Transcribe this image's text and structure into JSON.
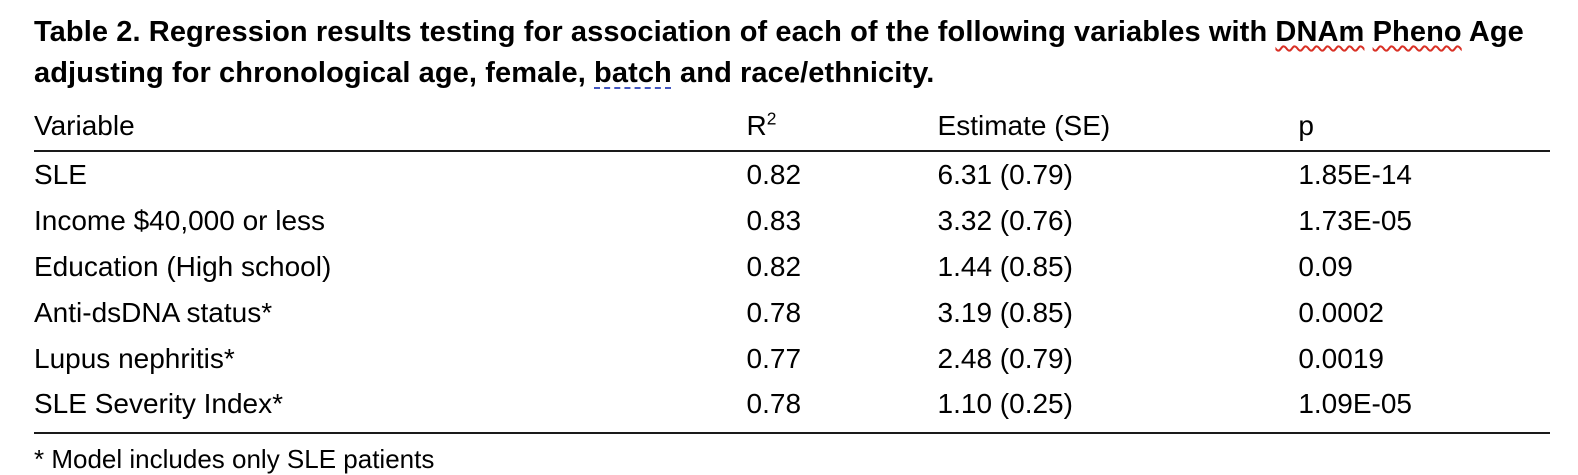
{
  "caption": {
    "part1": "Table 2. Regression results testing for association of each of the following variables with ",
    "word_dnam": "DNAm",
    "space": " ",
    "word_pheno": "Pheno",
    "part2": " Age",
    "part3": "adjusting for chronological age, female, ",
    "word_batch": "batch",
    "part4": " and race/ethnicity."
  },
  "table": {
    "headers": [
      {
        "text": "Variable"
      },
      {
        "text": "R",
        "sup": "2"
      },
      {
        "text": "Estimate (SE)"
      },
      {
        "text": "p"
      }
    ],
    "rows": [
      {
        "variable": "SLE",
        "r2": "0.82",
        "estimate": "6.31 (0.79)",
        "p": "1.85E-14"
      },
      {
        "variable": "Income $40,000 or less",
        "r2": "0.83",
        "estimate": "3.32 (0.76)",
        "p": "1.73E-05"
      },
      {
        "variable": "Education (High school)",
        "r2": "0.82",
        "estimate": "1.44 (0.85)",
        "p": "0.09"
      },
      {
        "variable": "Anti-dsDNA status*",
        "r2": "0.78",
        "estimate": "3.19 (0.85)",
        "p": "0.0002"
      },
      {
        "variable": "Lupus nephritis*",
        "r2": "0.77",
        "estimate": "2.48 (0.79)",
        "p": "0.0019"
      },
      {
        "variable": "SLE Severity Index*",
        "r2": "0.78",
        "estimate": "1.10 (0.25)",
        "p": "1.09E-05"
      }
    ]
  },
  "footnote": "* Model includes only SLE patients",
  "colors": {
    "text": "#000000",
    "rule": "#1a1a1a",
    "spell_underline": "#d93025",
    "grammar_underline": "#4356c0",
    "background": "#ffffff"
  }
}
